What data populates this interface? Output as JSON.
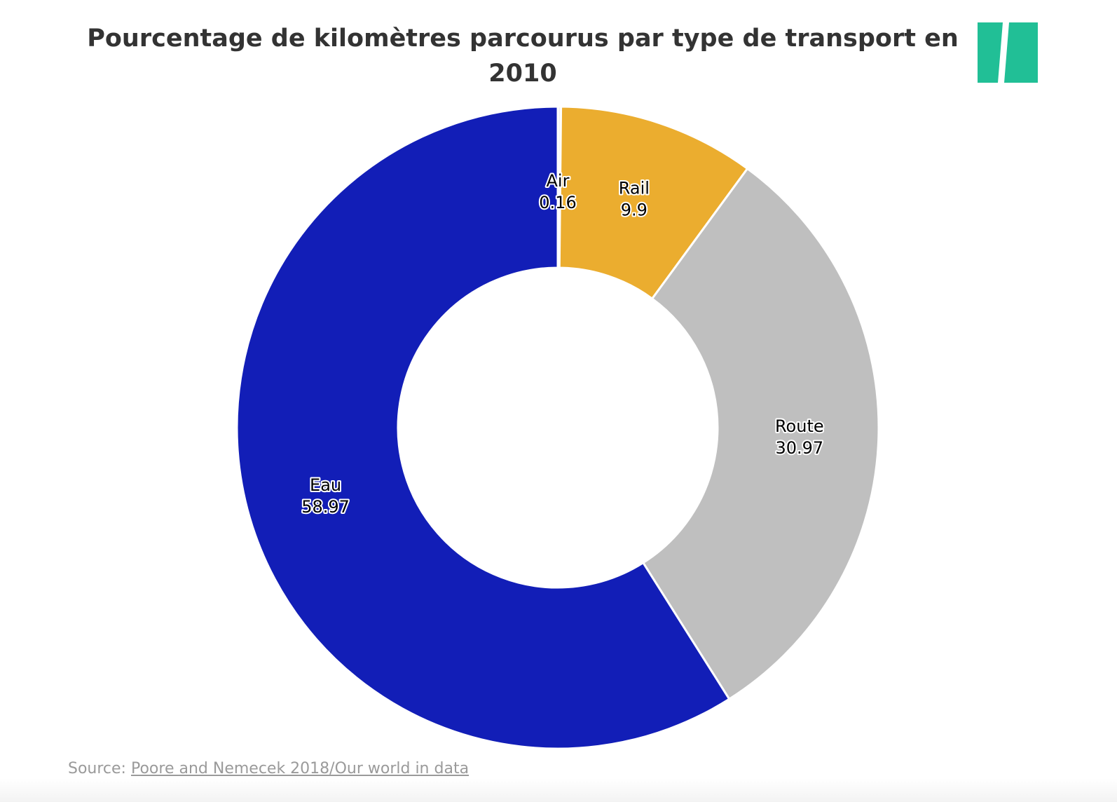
{
  "chart_data": {
    "type": "pie",
    "title": "Pourcentage de kilomètres parcourus par type de transport en 2010",
    "slices": [
      {
        "label": "Air",
        "value": 0.16,
        "value_text": "0.16",
        "color": "#f2f2f2"
      },
      {
        "label": "Rail",
        "value": 9.9,
        "value_text": "9.9",
        "color": "#ebad2f"
      },
      {
        "label": "Route",
        "value": 30.97,
        "value_text": "30.97",
        "color": "#bfbfbf"
      },
      {
        "label": "Eau",
        "value": 58.97,
        "value_text": "58.97",
        "color": "#121eb7"
      }
    ],
    "style": "donut"
  },
  "source": {
    "prefix": "Source:",
    "link_text": "Poore and Nemecek 2018/Our world in data"
  },
  "logo": {
    "icon": "double-slash-logo-icon",
    "color": "#21bf96"
  }
}
